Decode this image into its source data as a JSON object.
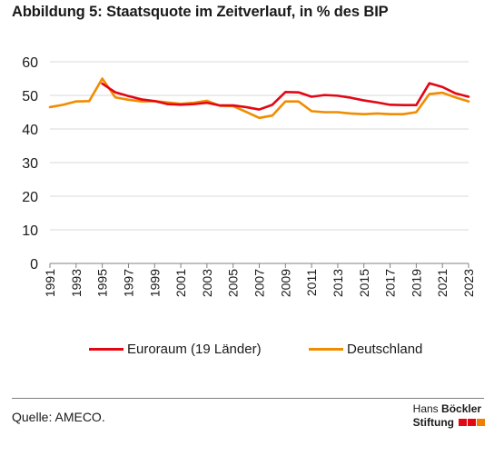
{
  "title": "Abbildung 5: Staatsquote im Zeitverlauf, in % des BIP",
  "source": "Quelle: AMECO.",
  "logo": {
    "line1_light": "Hans",
    "line1_bold": "Böckler",
    "line2": "Stiftung",
    "mark_colors": [
      "#e30613",
      "#f07d00"
    ]
  },
  "colors": {
    "euroraum": "#e30613",
    "deutschland": "#f08c00",
    "grid": "#d9d9d9",
    "axis": "#808080"
  },
  "chart_data": {
    "type": "line",
    "title": "Abbildung 5: Staatsquote im Zeitverlauf, in % des BIP",
    "xlabel": "",
    "ylabel": "",
    "ylim": [
      0,
      60
    ],
    "yticks": [
      0,
      10,
      20,
      30,
      40,
      50,
      60
    ],
    "grid": true,
    "legend_position": "bottom",
    "x": [
      1991,
      1992,
      1993,
      1994,
      1995,
      1996,
      1997,
      1998,
      1999,
      2000,
      2001,
      2002,
      2003,
      2004,
      2005,
      2006,
      2007,
      2008,
      2009,
      2010,
      2011,
      2012,
      2013,
      2014,
      2015,
      2016,
      2017,
      2018,
      2019,
      2020,
      2021,
      2022,
      2023
    ],
    "xtick_labels": [
      "1991",
      "1993",
      "1995",
      "1997",
      "1999",
      "2001",
      "2003",
      "2005",
      "2007",
      "2009",
      "2011",
      "2013",
      "2015",
      "2017",
      "2019",
      "2021",
      "2023"
    ],
    "series": [
      {
        "name": "Euroraum (19 Länder)",
        "color": "#e30613",
        "values": [
          null,
          null,
          null,
          null,
          53.5,
          50.9,
          49.8,
          48.8,
          48.3,
          47.4,
          47.2,
          47.4,
          47.8,
          47.0,
          47.0,
          46.5,
          45.8,
          47.2,
          51.0,
          50.9,
          49.6,
          50.1,
          49.9,
          49.3,
          48.5,
          47.9,
          47.2,
          47.1,
          47.1,
          53.6,
          52.5,
          50.6,
          49.6
        ]
      },
      {
        "name": "Deutschland",
        "color": "#f08c00",
        "values": [
          46.5,
          47.2,
          48.2,
          48.3,
          55.0,
          49.4,
          48.7,
          48.2,
          48.3,
          47.9,
          47.5,
          47.8,
          48.4,
          46.9,
          46.8,
          45.1,
          43.3,
          44.0,
          48.2,
          48.2,
          45.3,
          45.0,
          45.0,
          44.6,
          44.4,
          44.6,
          44.4,
          44.4,
          45.0,
          50.4,
          50.8,
          49.4,
          48.2
        ]
      }
    ]
  }
}
